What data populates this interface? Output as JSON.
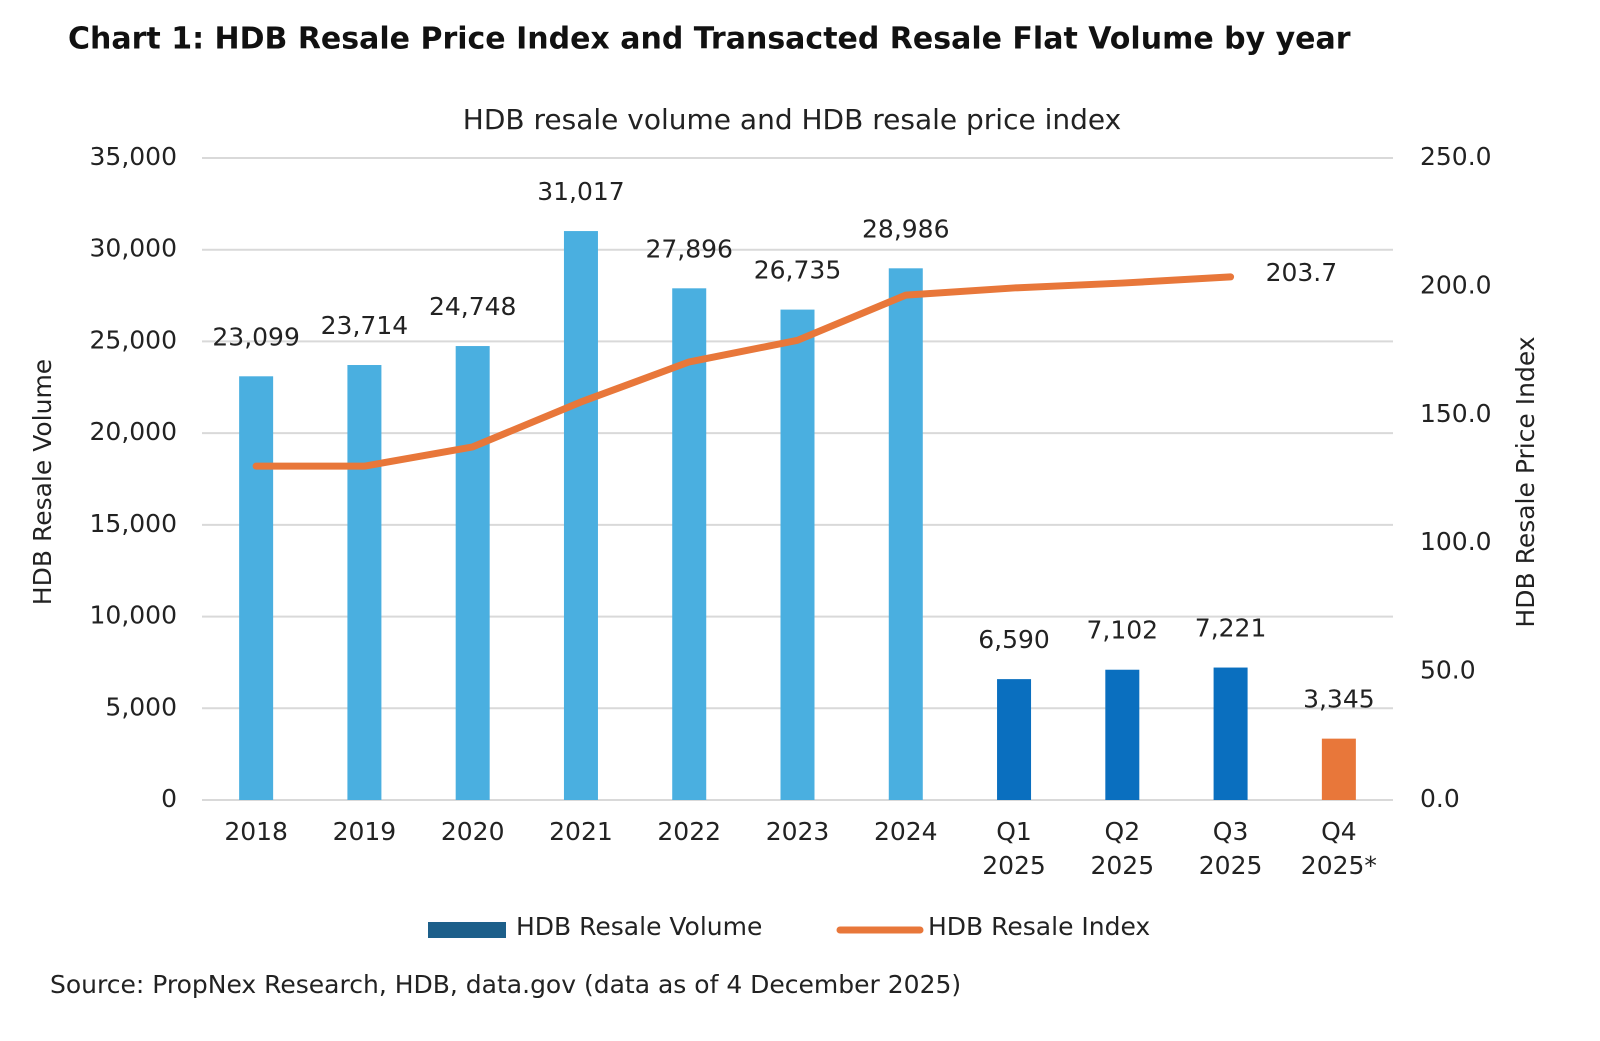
{
  "chart_data": {
    "type": "bar",
    "title": "Chart 1: HDB Resale Price Index and Transacted Resale Flat Volume by year",
    "subtitle": "HDB resale volume and HDB resale price index",
    "y_label": "HDB Resale Volume",
    "y2_label": "HDB Resale Price Index",
    "source": "Source: PropNex Research, HDB, data.gov (data as of 4 December 2025)",
    "categories": [
      "2018",
      "2019",
      "2020",
      "2021",
      "2022",
      "2023",
      "2024",
      "Q1 2025",
      "Q2 2025",
      "Q3 2025",
      "Q4 2025*"
    ],
    "series": [
      {
        "name": "HDB Resale Volume",
        "type": "bar",
        "color": "#1d5f8a",
        "colors": [
          "#4aafe0",
          "#4aafe0",
          "#4aafe0",
          "#4aafe0",
          "#4aafe0",
          "#4aafe0",
          "#4aafe0",
          "#0a6fbf",
          "#0a6fbf",
          "#0a6fbf",
          "#e8773a"
        ],
        "values": [
          23099,
          23714,
          24748,
          31017,
          27896,
          26735,
          28986,
          6590,
          7102,
          7221,
          3345
        ],
        "value_labels": [
          "23,099",
          "23,714",
          "24,748",
          "31,017",
          "27,896",
          "26,735",
          "28,986",
          "6,590",
          "7,102",
          "7,221",
          "3,345"
        ]
      },
      {
        "name": "HDB Resale Index",
        "type": "line",
        "axis": "y2",
        "color": "#e8773a",
        "values": [
          130,
          130,
          137.5,
          155,
          170.6,
          179,
          196.6,
          199.4,
          201.3,
          203.7,
          null
        ],
        "value_labels": [
          null,
          null,
          null,
          null,
          null,
          null,
          null,
          null,
          null,
          "203.7",
          null
        ]
      }
    ],
    "ylim": [
      0,
      35000
    ],
    "yticks": [
      0,
      {
        "value": 5000,
        "label": "5,000"
      },
      {
        "value": 10000,
        "label": "10,000"
      },
      {
        "value": 15000,
        "label": "15,000"
      },
      {
        "value": 20000,
        "label": "20,000"
      },
      {
        "value": 25000,
        "label": "25,000"
      },
      {
        "value": 30000,
        "label": "30,000"
      },
      {
        "value": 35000,
        "label": "35,000"
      }
    ],
    "y2lim": [
      0,
      250
    ],
    "y2ticks": [
      {
        "value": 0,
        "label": "0.0"
      },
      {
        "value": 50,
        "label": "50.0"
      },
      {
        "value": 100,
        "label": "100.0"
      },
      {
        "value": 150,
        "label": "150.0"
      },
      {
        "value": 200,
        "label": "200.0"
      },
      {
        "value": 250,
        "label": "250.0"
      }
    ],
    "grid": true,
    "legend": "bottom"
  }
}
